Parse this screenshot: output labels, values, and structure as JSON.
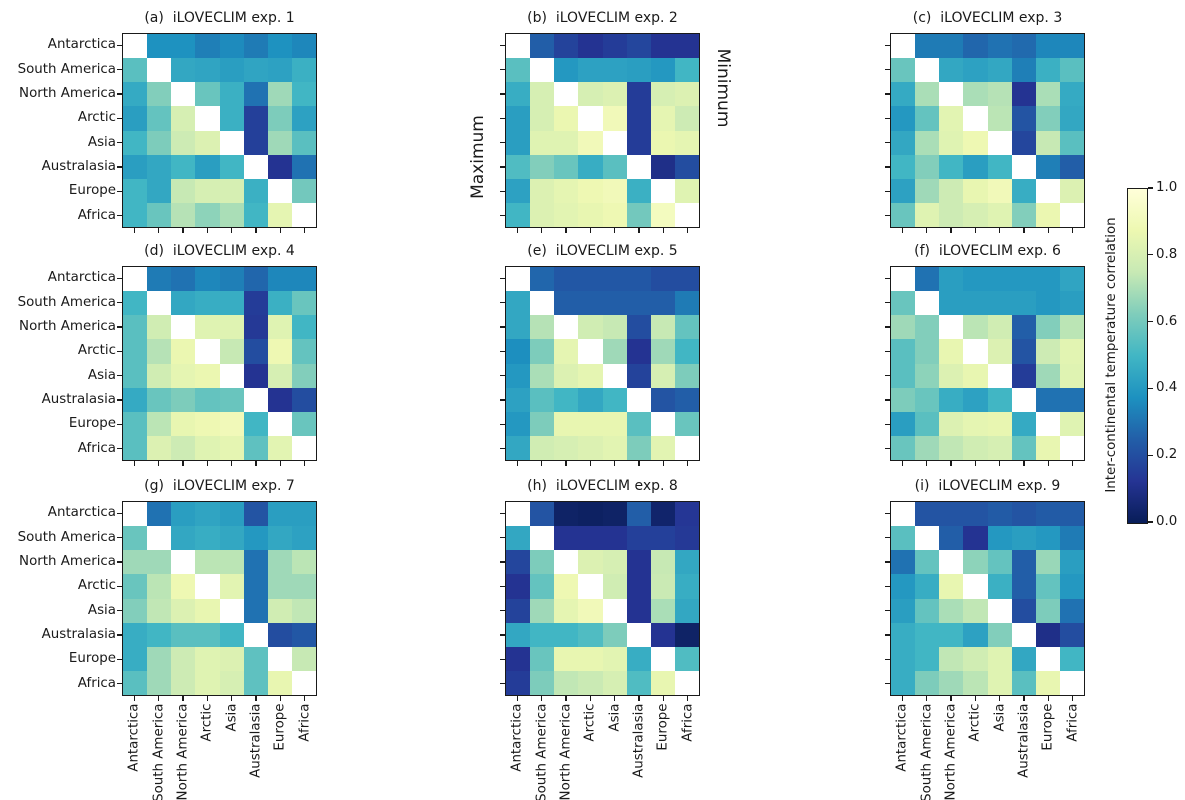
{
  "figure": {
    "background": "#ffffff",
    "triangle_labels": {
      "lower": "Maximum",
      "upper": "Minimum"
    }
  },
  "chart_data": {
    "type": "heatmap",
    "grid": "3x3 panel matrix of 8x8 correlation heatmaps; lower triangle = maximum correlation, upper triangle = minimum correlation, diagonal masked white",
    "colormap": "YlGnBu_r",
    "vmin": 0.0,
    "vmax": 1.0,
    "colormap_anchors": [
      {
        "v": 0.0,
        "c": "#081d58"
      },
      {
        "v": 0.125,
        "c": "#253494"
      },
      {
        "v": 0.25,
        "c": "#225ea8"
      },
      {
        "v": 0.375,
        "c": "#1d91c0"
      },
      {
        "v": 0.5,
        "c": "#41b6c4"
      },
      {
        "v": 0.625,
        "c": "#7fcdbb"
      },
      {
        "v": 0.75,
        "c": "#c7e9b4"
      },
      {
        "v": 0.875,
        "c": "#edf8b1"
      },
      {
        "v": 1.0,
        "c": "#ffffd9"
      }
    ],
    "categories": [
      "Antarctica",
      "South America",
      "North America",
      "Arctic",
      "Asia",
      "Australasia",
      "Europe",
      "Africa"
    ],
    "triangle_labels": {
      "lower": "Maximum",
      "upper": "Minimum"
    },
    "colorbar": {
      "label": "Inter-continental temperature correlation",
      "ticks": [
        "1.0",
        "0.8",
        "0.6",
        "0.4",
        "0.2",
        "0.0"
      ]
    },
    "panels": [
      {
        "tag": "(a)",
        "title": "iLOVECLIM exp. 1",
        "matrix": [
          [
            null,
            0.38,
            0.38,
            0.33,
            0.36,
            0.32,
            0.38,
            0.35
          ],
          [
            0.55,
            null,
            0.45,
            0.44,
            0.42,
            0.44,
            0.43,
            0.48
          ],
          [
            0.46,
            0.63,
            null,
            0.58,
            0.48,
            0.3,
            0.68,
            0.5
          ],
          [
            0.42,
            0.57,
            0.8,
            null,
            0.48,
            0.16,
            0.62,
            0.43
          ],
          [
            0.5,
            0.62,
            0.77,
            0.82,
            null,
            0.16,
            0.68,
            0.55
          ],
          [
            0.42,
            0.45,
            0.5,
            0.42,
            0.5,
            null,
            0.12,
            0.3
          ],
          [
            0.5,
            0.45,
            0.75,
            0.8,
            0.8,
            0.48,
            null,
            0.6
          ],
          [
            0.5,
            0.58,
            0.72,
            0.65,
            0.7,
            0.5,
            0.85,
            null
          ]
        ]
      },
      {
        "tag": "(b)",
        "title": "iLOVECLIM exp. 2",
        "matrix": [
          [
            null,
            0.25,
            0.17,
            0.12,
            0.15,
            0.18,
            0.12,
            0.12
          ],
          [
            0.55,
            null,
            0.4,
            0.43,
            0.43,
            0.42,
            0.4,
            0.5
          ],
          [
            0.47,
            0.8,
            null,
            0.8,
            0.82,
            0.15,
            0.8,
            0.82
          ],
          [
            0.42,
            0.8,
            0.87,
            null,
            0.9,
            0.15,
            0.85,
            0.77
          ],
          [
            0.42,
            0.83,
            0.83,
            0.9,
            null,
            0.15,
            0.87,
            0.85
          ],
          [
            0.53,
            0.63,
            0.58,
            0.47,
            0.55,
            null,
            0.1,
            0.2
          ],
          [
            0.43,
            0.82,
            0.85,
            0.88,
            0.9,
            0.48,
            null,
            0.83
          ],
          [
            0.5,
            0.82,
            0.84,
            0.86,
            0.88,
            0.6,
            0.92,
            null
          ]
        ]
      },
      {
        "tag": "(c)",
        "title": "iLOVECLIM exp. 3",
        "matrix": [
          [
            null,
            0.32,
            0.32,
            0.27,
            0.3,
            0.28,
            0.35,
            0.35
          ],
          [
            0.58,
            null,
            0.45,
            0.43,
            0.45,
            0.33,
            0.48,
            0.55
          ],
          [
            0.46,
            0.7,
            null,
            0.7,
            0.72,
            0.12,
            0.7,
            0.46
          ],
          [
            0.4,
            0.57,
            0.84,
            null,
            0.73,
            0.22,
            0.63,
            0.45
          ],
          [
            0.45,
            0.7,
            0.83,
            0.88,
            null,
            0.18,
            0.75,
            0.55
          ],
          [
            0.5,
            0.63,
            0.5,
            0.42,
            0.5,
            null,
            0.33,
            0.25
          ],
          [
            0.43,
            0.68,
            0.77,
            0.86,
            0.9,
            0.47,
            null,
            0.82
          ],
          [
            0.58,
            0.83,
            0.77,
            0.8,
            0.83,
            0.63,
            0.87,
            null
          ]
        ]
      },
      {
        "tag": "(d)",
        "title": "iLOVECLIM exp. 4",
        "matrix": [
          [
            null,
            0.32,
            0.3,
            0.35,
            0.33,
            0.27,
            0.35,
            0.35
          ],
          [
            0.5,
            null,
            0.45,
            0.47,
            0.47,
            0.15,
            0.48,
            0.58
          ],
          [
            0.55,
            0.78,
            null,
            0.83,
            0.83,
            0.14,
            0.83,
            0.5
          ],
          [
            0.55,
            0.72,
            0.87,
            null,
            0.75,
            0.2,
            0.88,
            0.57
          ],
          [
            0.55,
            0.78,
            0.85,
            0.87,
            null,
            0.12,
            0.8,
            0.63
          ],
          [
            0.46,
            0.58,
            0.62,
            0.57,
            0.58,
            null,
            0.12,
            0.2
          ],
          [
            0.55,
            0.73,
            0.86,
            0.88,
            0.9,
            0.5,
            null,
            0.58
          ],
          [
            0.55,
            0.82,
            0.77,
            0.83,
            0.85,
            0.56,
            0.84,
            null
          ]
        ]
      },
      {
        "tag": "(e)",
        "title": "iLOVECLIM exp. 5",
        "matrix": [
          [
            null,
            0.27,
            0.23,
            0.23,
            0.23,
            0.23,
            0.2,
            0.2
          ],
          [
            0.45,
            null,
            0.25,
            0.25,
            0.25,
            0.25,
            0.25,
            0.32
          ],
          [
            0.45,
            0.72,
            null,
            0.78,
            0.75,
            0.2,
            0.75,
            0.57
          ],
          [
            0.37,
            0.62,
            0.85,
            null,
            0.68,
            0.12,
            0.68,
            0.5
          ],
          [
            0.4,
            0.7,
            0.82,
            0.85,
            null,
            0.17,
            0.8,
            0.62
          ],
          [
            0.43,
            0.55,
            0.5,
            0.45,
            0.5,
            null,
            0.22,
            0.25
          ],
          [
            0.4,
            0.62,
            0.86,
            0.86,
            0.86,
            0.55,
            null,
            0.58
          ],
          [
            0.45,
            0.78,
            0.8,
            0.82,
            0.84,
            0.62,
            0.84,
            null
          ]
        ]
      },
      {
        "tag": "(f)",
        "title": "iLOVECLIM exp. 6",
        "matrix": [
          [
            null,
            0.3,
            0.42,
            0.4,
            0.4,
            0.4,
            0.4,
            0.44
          ],
          [
            0.58,
            null,
            0.42,
            0.42,
            0.42,
            0.42,
            0.4,
            0.42
          ],
          [
            0.68,
            0.63,
            null,
            0.73,
            0.78,
            0.25,
            0.63,
            0.73
          ],
          [
            0.55,
            0.63,
            0.86,
            null,
            0.82,
            0.22,
            0.77,
            0.84
          ],
          [
            0.55,
            0.65,
            0.82,
            0.86,
            null,
            0.15,
            0.68,
            0.83
          ],
          [
            0.62,
            0.58,
            0.47,
            0.43,
            0.5,
            null,
            0.3,
            0.3
          ],
          [
            0.42,
            0.55,
            0.82,
            0.85,
            0.86,
            0.46,
            null,
            0.83
          ],
          [
            0.58,
            0.68,
            0.74,
            0.78,
            0.8,
            0.57,
            0.86,
            null
          ]
        ]
      },
      {
        "tag": "(g)",
        "title": "iLOVECLIM exp. 7",
        "matrix": [
          [
            null,
            0.3,
            0.42,
            0.44,
            0.42,
            0.22,
            0.42,
            0.42
          ],
          [
            0.58,
            null,
            0.45,
            0.47,
            0.45,
            0.4,
            0.45,
            0.43
          ],
          [
            0.68,
            0.68,
            null,
            0.73,
            0.73,
            0.3,
            0.68,
            0.73
          ],
          [
            0.58,
            0.73,
            0.88,
            null,
            0.84,
            0.3,
            0.68,
            0.68
          ],
          [
            0.63,
            0.74,
            0.82,
            0.86,
            null,
            0.3,
            0.78,
            0.74
          ],
          [
            0.47,
            0.5,
            0.55,
            0.55,
            0.5,
            null,
            0.2,
            0.23
          ],
          [
            0.47,
            0.68,
            0.77,
            0.83,
            0.82,
            0.56,
            null,
            0.75
          ],
          [
            0.55,
            0.68,
            0.77,
            0.83,
            0.8,
            0.56,
            0.86,
            null
          ]
        ]
      },
      {
        "tag": "(h)",
        "title": "iLOVECLIM exp. 8",
        "matrix": [
          [
            null,
            0.22,
            0.03,
            0.02,
            0.03,
            0.25,
            0.04,
            0.13
          ],
          [
            0.45,
            null,
            0.12,
            0.12,
            0.12,
            0.16,
            0.16,
            0.14
          ],
          [
            0.18,
            0.62,
            null,
            0.82,
            0.8,
            0.12,
            0.75,
            0.45
          ],
          [
            0.12,
            0.57,
            0.88,
            null,
            0.78,
            0.12,
            0.76,
            0.47
          ],
          [
            0.17,
            0.68,
            0.85,
            0.9,
            null,
            0.12,
            0.7,
            0.45
          ],
          [
            0.45,
            0.5,
            0.5,
            0.53,
            0.62,
            null,
            0.12,
            0.03
          ],
          [
            0.12,
            0.58,
            0.86,
            0.86,
            0.84,
            0.47,
            null,
            0.53
          ],
          [
            0.15,
            0.62,
            0.74,
            0.76,
            0.8,
            0.53,
            0.86,
            null
          ]
        ]
      },
      {
        "tag": "(i)",
        "title": "iLOVECLIM exp. 9",
        "matrix": [
          [
            null,
            0.22,
            0.22,
            0.22,
            0.24,
            0.22,
            0.24,
            0.24
          ],
          [
            0.55,
            null,
            0.25,
            0.12,
            0.4,
            0.42,
            0.4,
            0.32
          ],
          [
            0.3,
            0.57,
            null,
            0.65,
            0.57,
            0.25,
            0.67,
            0.42
          ],
          [
            0.4,
            0.47,
            0.86,
            null,
            0.48,
            0.25,
            0.57,
            0.4
          ],
          [
            0.42,
            0.57,
            0.7,
            0.74,
            null,
            0.2,
            0.62,
            0.3
          ],
          [
            0.47,
            0.5,
            0.5,
            0.43,
            0.63,
            null,
            0.1,
            0.2
          ],
          [
            0.47,
            0.5,
            0.74,
            0.78,
            0.83,
            0.45,
            null,
            0.5
          ],
          [
            0.47,
            0.62,
            0.68,
            0.73,
            0.83,
            0.55,
            0.86,
            null
          ]
        ]
      }
    ]
  }
}
